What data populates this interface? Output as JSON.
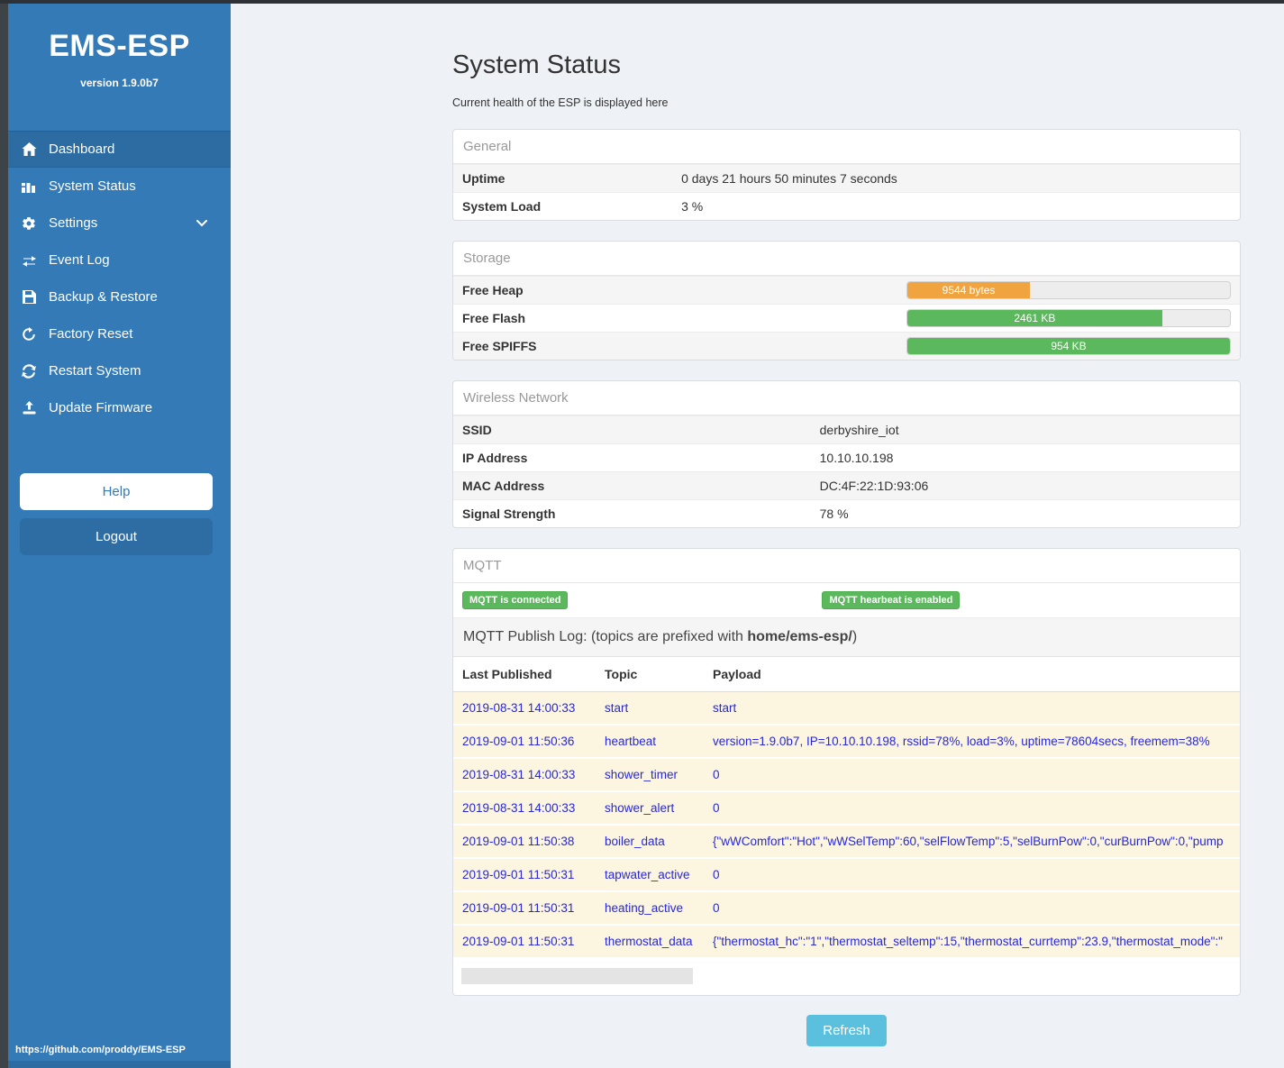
{
  "sidebar": {
    "title": "EMS-ESP",
    "version": "version 1.9.0b7",
    "items": [
      {
        "label": "Dashboard"
      },
      {
        "label": "System Status"
      },
      {
        "label": "Settings"
      },
      {
        "label": "Event Log"
      },
      {
        "label": "Backup & Restore"
      },
      {
        "label": "Factory Reset"
      },
      {
        "label": "Restart System"
      },
      {
        "label": "Update Firmware"
      }
    ],
    "help_label": "Help",
    "logout_label": "Logout",
    "footer_url": "https://github.com/proddy/EMS-ESP"
  },
  "page": {
    "title": "System Status",
    "subtitle": "Current health of the ESP is displayed here",
    "refresh_label": "Refresh"
  },
  "colors": {
    "sidebar_blue": "#337ab7",
    "active_blue": "#2d6ca2",
    "warning_orange": "#efa440",
    "success_green": "#5cb85c",
    "info_blue": "#5bc0de",
    "log_row_bg": "#fcf6e0",
    "log_text_blue": "#2727d8"
  },
  "general": {
    "header": "General",
    "rows": [
      {
        "label": "Uptime",
        "value": "0 days 21 hours 50 minutes 7 seconds"
      },
      {
        "label": "System Load",
        "value": "3 %"
      }
    ]
  },
  "storage": {
    "header": "Storage",
    "rows": [
      {
        "label": "Free Heap",
        "value": "9544 bytes",
        "pct": 38,
        "color": "#efa440"
      },
      {
        "label": "Free Flash",
        "value": "2461 KB",
        "pct": 79,
        "color": "#5cb85c"
      },
      {
        "label": "Free SPIFFS",
        "value": "954 KB",
        "pct": 100,
        "color": "#5cb85c"
      }
    ]
  },
  "wireless": {
    "header": "Wireless Network",
    "rows": [
      {
        "label": "SSID",
        "value": "derbyshire_iot"
      },
      {
        "label": "IP Address",
        "value": "10.10.10.198"
      },
      {
        "label": "MAC Address",
        "value": "DC:4F:22:1D:93:06"
      },
      {
        "label": "Signal Strength",
        "value": "78 %"
      }
    ]
  },
  "mqtt": {
    "header": "MQTT",
    "badges": [
      "MQTT is connected",
      "MQTT hearbeat is enabled"
    ],
    "publog_prefix": "MQTT Publish Log: (topics are prefixed with ",
    "publog_bold": "home/ems-esp/",
    "publog_suffix": ")",
    "columns": [
      "Last Published",
      "Topic",
      "Payload"
    ],
    "rows": [
      {
        "date": "2019-08-31 14:00:33",
        "topic": "start",
        "payload": "start"
      },
      {
        "date": "2019-09-01 11:50:36",
        "topic": "heartbeat",
        "payload": "version=1.9.0b7, IP=10.10.10.198, rssid=78%, load=3%, uptime=78604secs, freemem=38%"
      },
      {
        "date": "2019-08-31 14:00:33",
        "topic": "shower_timer",
        "payload": "0"
      },
      {
        "date": "2019-08-31 14:00:33",
        "topic": "shower_alert",
        "payload": "0"
      },
      {
        "date": "2019-09-01 11:50:38",
        "topic": "boiler_data",
        "payload": "{\"wWComfort\":\"Hot\",\"wWSelTemp\":60,\"selFlowTemp\":5,\"selBurnPow\":0,\"curBurnPow\":0,\"pump"
      },
      {
        "date": "2019-09-01 11:50:31",
        "topic": "tapwater_active",
        "payload": "0"
      },
      {
        "date": "2019-09-01 11:50:31",
        "topic": "heating_active",
        "payload": "0"
      },
      {
        "date": "2019-09-01 11:50:31",
        "topic": "thermostat_data",
        "payload": "{\"thermostat_hc\":\"1\",\"thermostat_seltemp\":15,\"thermostat_currtemp\":23.9,\"thermostat_mode\":\""
      }
    ]
  }
}
